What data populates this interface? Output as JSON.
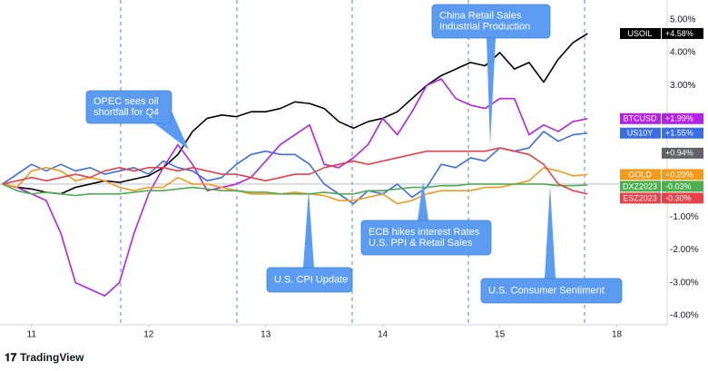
{
  "chart_data": {
    "type": "line",
    "x": [
      -0.25,
      -0.125,
      0,
      0.125,
      0.25,
      0.375,
      0.5,
      0.625,
      0.75,
      0.875,
      1,
      1.125,
      1.25,
      1.375,
      1.5,
      1.625,
      1.75,
      1.875,
      2,
      2.125,
      2.25,
      2.375,
      2.5,
      2.625,
      2.75,
      2.875,
      3,
      3.125,
      3.25,
      3.375,
      3.5,
      3.625,
      3.75,
      3.875,
      4,
      4.125,
      4.25,
      4.375,
      4.5,
      4.625,
      4.75
    ],
    "xlim": [
      -0.27,
      5.43
    ],
    "xticks": [
      {
        "value": 0,
        "label": "11"
      },
      {
        "value": 1,
        "label": "12"
      },
      {
        "value": 2,
        "label": "13"
      },
      {
        "value": 3,
        "label": "14"
      },
      {
        "value": 4,
        "label": "15"
      },
      {
        "value": 5,
        "label": "18"
      }
    ],
    "ylim": [
      -4.28,
      5.6
    ],
    "yticks": [
      {
        "value": 5,
        "label": "5.00%"
      },
      {
        "value": 4,
        "label": "4.00%"
      },
      {
        "value": 3,
        "label": "3.00%"
      },
      {
        "value": -1,
        "label": "-1.00%"
      },
      {
        "value": -2,
        "label": "-2.00%"
      },
      {
        "value": -3,
        "label": "-3.00%"
      },
      {
        "value": -4,
        "label": "-4.00%"
      }
    ],
    "series": [
      {
        "name": "USOIL",
        "color": "#000000",
        "end_label": "+4.58%",
        "values": [
          0,
          -0.1,
          -0.15,
          -0.25,
          -0.3,
          -0.1,
          0,
          0.1,
          0.05,
          0.15,
          0.25,
          0.5,
          0.9,
          1.6,
          2.0,
          2.1,
          2.05,
          2.2,
          2.2,
          2.3,
          2.5,
          2.45,
          2.3,
          1.9,
          1.7,
          1.9,
          2.0,
          2.2,
          2.6,
          3.0,
          3.3,
          3.5,
          3.7,
          3.6,
          4.0,
          3.5,
          3.7,
          3.1,
          3.8,
          4.3,
          4.58
        ]
      },
      {
        "name": "BTCUSD",
        "color": "#b522e8",
        "end_label": "+1.99%",
        "values": [
          0,
          -0.1,
          -0.3,
          -0.5,
          -1.5,
          -3.0,
          -3.2,
          -3.4,
          -3.0,
          -1.5,
          -0.3,
          0.5,
          1.2,
          0.6,
          -0.2,
          -0.1,
          0.0,
          0.2,
          0.7,
          1.2,
          1.5,
          1.8,
          0.6,
          0.5,
          0.8,
          1.2,
          2.0,
          1.5,
          2.2,
          3.0,
          3.2,
          2.6,
          2.4,
          2.3,
          2.6,
          2.6,
          1.5,
          1.8,
          1.6,
          1.9,
          1.99
        ]
      },
      {
        "name": "US10Y",
        "color": "#3b6ee6",
        "end_label": "+1.55%",
        "values": [
          0,
          0.3,
          0.6,
          0.4,
          0.6,
          0.4,
          0.5,
          0.3,
          0.4,
          0.5,
          0.3,
          0.7,
          0.5,
          0.4,
          0.1,
          0.2,
          0.6,
          0.9,
          1.0,
          0.9,
          0.9,
          0.6,
          0.0,
          -0.3,
          -0.6,
          -0.2,
          -0.3,
          0.0,
          -0.4,
          -0.1,
          0.6,
          0.5,
          0.8,
          0.7,
          1.1,
          1.0,
          1.1,
          1.6,
          1.3,
          1.5,
          1.55
        ]
      },
      {
        "name": "GOLD",
        "color": "#f59a1c",
        "end_label": "+0.29%",
        "values": [
          0,
          -0.1,
          0.4,
          0.5,
          0.4,
          0.1,
          0.2,
          0.1,
          -0.1,
          -0.2,
          -0.1,
          -0.1,
          0.2,
          0.0,
          0.0,
          -0.1,
          -0.2,
          -0.3,
          -0.3,
          -0.3,
          -0.25,
          -0.3,
          -0.35,
          -0.5,
          -0.5,
          -0.4,
          -0.3,
          -0.6,
          -0.5,
          -0.3,
          -0.2,
          -0.2,
          -0.2,
          -0.1,
          -0.1,
          0.0,
          0.1,
          0.5,
          0.4,
          0.25,
          0.29
        ]
      },
      {
        "name": "DXZ2023",
        "color": "#4caf50",
        "end_label": "-0.03%",
        "values": [
          0,
          -0.2,
          -0.3,
          -0.25,
          -0.3,
          -0.35,
          -0.3,
          -0.3,
          -0.3,
          -0.25,
          -0.2,
          -0.2,
          -0.15,
          -0.1,
          -0.15,
          -0.2,
          -0.2,
          -0.25,
          -0.25,
          -0.3,
          -0.3,
          -0.3,
          -0.25,
          -0.3,
          -0.3,
          -0.2,
          -0.2,
          -0.15,
          -0.1,
          -0.1,
          -0.05,
          -0.05,
          0.0,
          0.0,
          0.0,
          0.0,
          0.0,
          0.0,
          -0.05,
          -0.05,
          -0.03
        ]
      },
      {
        "name": "ESZ2023",
        "color": "#e8414a",
        "end_label": "-0.30%",
        "values": [
          0,
          0.1,
          0.2,
          0.1,
          0.2,
          0.3,
          0.2,
          0.4,
          0.5,
          0.4,
          0.5,
          0.5,
          0.4,
          0.5,
          0.4,
          0.3,
          0.3,
          0.2,
          0.1,
          0.2,
          0.3,
          0.3,
          0.5,
          0.6,
          0.7,
          0.6,
          0.7,
          0.8,
          0.9,
          1.0,
          1.0,
          1.0,
          1.0,
          1.0,
          1.1,
          1.0,
          0.9,
          0.6,
          0.0,
          -0.2,
          -0.3
        ]
      }
    ],
    "extra_tags": [
      {
        "value": 0.94,
        "label": "+0.94%",
        "color": "#5f6368"
      }
    ],
    "annotations": [
      {
        "text": [
          "OPEC sees oil",
          "shortfall for Q4"
        ]
      },
      {
        "text": [
          "China Retail Sales",
          "Industrial Production"
        ]
      },
      {
        "text": [
          "ECB hikes interest Rates",
          "U.S. PPI & Retail Sales"
        ]
      },
      {
        "text": [
          "U.S. CPI Update"
        ]
      },
      {
        "text": [
          "U.S. Consumer Sentiment"
        ]
      }
    ],
    "footer": "TradingView"
  }
}
